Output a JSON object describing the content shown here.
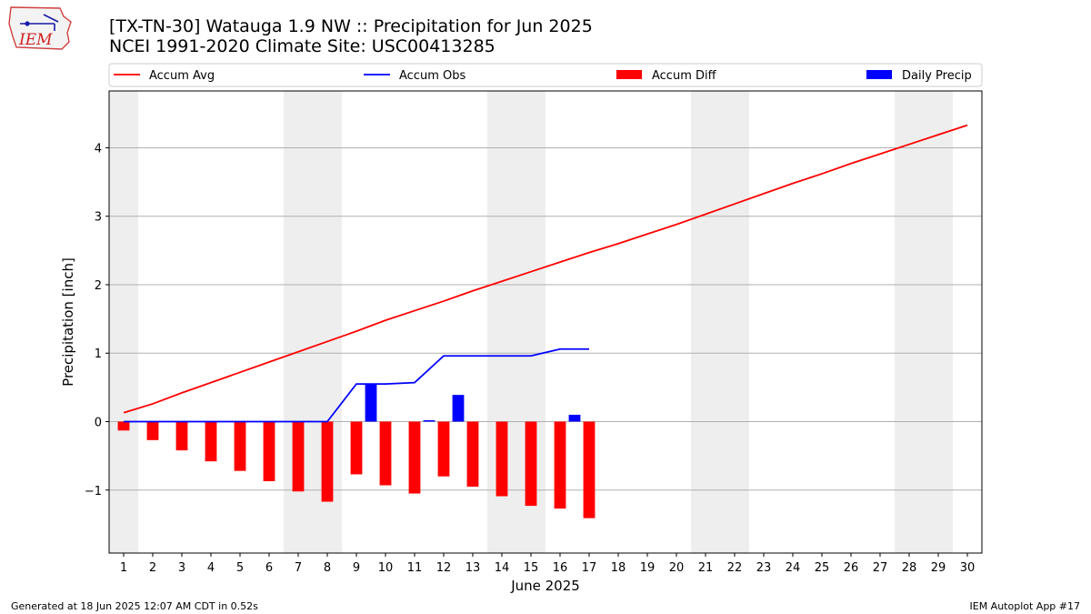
{
  "header": {
    "title_line1": "[TX-TN-30] Watauga 1.9 NW :: Precipitation for Jun 2025",
    "title_line2": "NCEI 1991-2020 Climate Site: USC00413285"
  },
  "logo": {
    "text": "IEM"
  },
  "footer": {
    "generated": "Generated at 18 Jun 2025 12:07 AM CDT in 0.52s",
    "app": "IEM Autoplot App #17"
  },
  "chart_data": {
    "type": "bar",
    "xlabel": "June 2025",
    "ylabel": "Precipitation [inch]",
    "xlim": [
      0.5,
      30.5
    ],
    "ylim": [
      -1.92,
      4.83
    ],
    "grid": true,
    "legend_position": "top",
    "weekend_days": [
      1,
      7,
      8,
      14,
      15,
      21,
      22,
      28,
      29
    ],
    "x_ticks": [
      1,
      2,
      3,
      4,
      5,
      6,
      7,
      8,
      9,
      10,
      11,
      12,
      13,
      14,
      15,
      16,
      17,
      18,
      19,
      20,
      21,
      22,
      23,
      24,
      25,
      26,
      27,
      28,
      29,
      30
    ],
    "y_ticks": [
      -1,
      0,
      1,
      2,
      3,
      4
    ],
    "y_tick_labels": [
      "−1",
      "0",
      "1",
      "2",
      "3",
      "4"
    ],
    "legend": [
      {
        "name": "Accum Avg",
        "kind": "line",
        "color": "#ff0000"
      },
      {
        "name": "Accum Obs",
        "kind": "line",
        "color": "#0000ff"
      },
      {
        "name": "Accum Diff",
        "kind": "bar",
        "color": "#ff0000"
      },
      {
        "name": "Daily Precip",
        "kind": "bar",
        "color": "#0000ff"
      }
    ],
    "series": [
      {
        "name": "Accum Avg",
        "color": "#ff0000",
        "x": [
          1,
          2,
          3,
          4,
          5,
          6,
          7,
          8,
          9,
          10,
          11,
          12,
          13,
          14,
          15,
          16,
          17,
          18,
          19,
          20,
          21,
          22,
          23,
          24,
          25,
          26,
          27,
          28,
          29,
          30
        ],
        "values": [
          0.13,
          0.26,
          0.42,
          0.57,
          0.72,
          0.87,
          1.02,
          1.17,
          1.32,
          1.48,
          1.62,
          1.76,
          1.91,
          2.05,
          2.19,
          2.33,
          2.47,
          2.6,
          2.74,
          2.88,
          3.03,
          3.18,
          3.33,
          3.48,
          3.62,
          3.77,
          3.91,
          4.05,
          4.19,
          4.33
        ]
      },
      {
        "name": "Accum Obs",
        "color": "#0000ff",
        "x": [
          1,
          2,
          3,
          4,
          5,
          6,
          7,
          8,
          9,
          10,
          11,
          12,
          13,
          14,
          15,
          16,
          17
        ],
        "values": [
          0,
          0,
          0,
          0,
          0,
          0,
          0,
          0,
          0.55,
          0.55,
          0.57,
          0.96,
          0.96,
          0.96,
          0.96,
          1.06,
          1.06
        ]
      },
      {
        "name": "Accum Diff",
        "color": "#ff0000",
        "x": [
          1,
          2,
          3,
          4,
          5,
          6,
          7,
          8,
          9,
          10,
          11,
          12,
          13,
          14,
          15,
          16,
          17
        ],
        "values": [
          -0.13,
          -0.27,
          -0.42,
          -0.58,
          -0.72,
          -0.87,
          -1.02,
          -1.17,
          -0.77,
          -0.93,
          -1.05,
          -0.8,
          -0.95,
          -1.09,
          -1.23,
          -1.27,
          -1.41
        ]
      },
      {
        "name": "Daily Precip",
        "color": "#0000ff",
        "x": [
          1,
          2,
          3,
          4,
          5,
          6,
          7,
          8,
          9,
          10,
          11,
          12,
          13,
          14,
          15,
          16,
          17
        ],
        "values": [
          0,
          0,
          0,
          0,
          0,
          0,
          0,
          0,
          0.55,
          0,
          0.02,
          0.39,
          0,
          0,
          0,
          0.1,
          0
        ]
      }
    ]
  }
}
